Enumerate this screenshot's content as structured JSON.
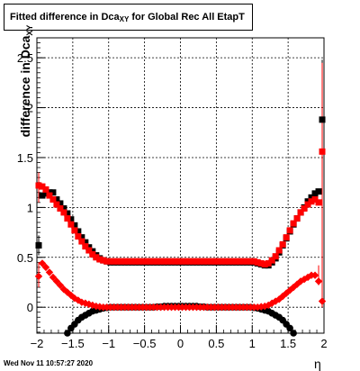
{
  "chart_data": {
    "type": "scatter",
    "title": {
      "prefix": "Fitted difference in Dca",
      "sub": "XY",
      "suffix": " for Global Rec All EtapT"
    },
    "ylabel": {
      "prefix": "difference in Dca",
      "sub": "XY"
    },
    "xlabel": "η",
    "xlim": [
      -2,
      2
    ],
    "ylim": [
      -0.26,
      2.7
    ],
    "x_ticks": [
      -2,
      -1.5,
      -1,
      -0.5,
      0,
      0.5,
      1,
      1.5,
      2
    ],
    "x_tick_labels": [
      "−2",
      "−1.5",
      "−1",
      "−0.5",
      "0",
      "0.5",
      "1",
      "1.5",
      "2"
    ],
    "y_ticks": [
      0,
      0.5,
      1,
      1.5,
      2,
      2.5
    ],
    "y_tick_labels": [
      "0",
      "0.5",
      "1",
      "1.5",
      "2",
      "2.5"
    ],
    "grid": true,
    "footer": "Wed Nov 11 10:57:27 2020",
    "series": [
      {
        "color": "#000000",
        "marker": "square",
        "x": [
          -1.975,
          -1.925,
          -1.875,
          -1.825,
          -1.775,
          -1.725,
          -1.675,
          -1.625,
          -1.575,
          -1.525,
          -1.475,
          -1.425,
          -1.375,
          -1.325,
          -1.275,
          -1.225,
          -1.175,
          -1.125,
          -1.075,
          -1.025,
          -0.975,
          -0.925,
          -0.875,
          -0.825,
          -0.775,
          -0.725,
          -0.675,
          -0.625,
          -0.575,
          -0.525,
          -0.475,
          -0.425,
          -0.375,
          -0.325,
          -0.275,
          -0.225,
          -0.175,
          -0.125,
          -0.075,
          -0.025,
          0.025,
          0.075,
          0.125,
          0.175,
          0.225,
          0.275,
          0.325,
          0.375,
          0.425,
          0.475,
          0.525,
          0.575,
          0.625,
          0.675,
          0.725,
          0.775,
          0.825,
          0.875,
          0.925,
          0.975,
          1.025,
          1.075,
          1.125,
          1.175,
          1.225,
          1.275,
          1.325,
          1.375,
          1.425,
          1.475,
          1.525,
          1.575,
          1.625,
          1.675,
          1.725,
          1.775,
          1.825,
          1.875,
          1.925,
          1.975
        ],
        "y": [
          0.62,
          1.12,
          1.14,
          1.15,
          1.15,
          1.08,
          1.04,
          0.99,
          0.94,
          0.88,
          0.82,
          0.76,
          0.7,
          0.65,
          0.6,
          0.56,
          0.52,
          0.49,
          0.47,
          0.46,
          0.45,
          0.45,
          0.45,
          0.45,
          0.45,
          0.45,
          0.45,
          0.45,
          0.45,
          0.45,
          0.45,
          0.45,
          0.45,
          0.45,
          0.45,
          0.45,
          0.45,
          0.45,
          0.45,
          0.45,
          0.45,
          0.45,
          0.45,
          0.45,
          0.45,
          0.45,
          0.45,
          0.45,
          0.45,
          0.45,
          0.45,
          0.45,
          0.45,
          0.45,
          0.45,
          0.45,
          0.45,
          0.45,
          0.45,
          0.45,
          0.45,
          0.44,
          0.43,
          0.42,
          0.42,
          0.45,
          0.49,
          0.55,
          0.62,
          0.69,
          0.76,
          0.83,
          0.89,
          0.95,
          1.0,
          1.06,
          1.1,
          1.14,
          1.16,
          1.88
        ]
      },
      {
        "color": "#ff0000",
        "marker": "square",
        "x": [
          -1.975,
          -1.925,
          -1.875,
          -1.825,
          -1.775,
          -1.725,
          -1.675,
          -1.625,
          -1.575,
          -1.525,
          -1.475,
          -1.425,
          -1.375,
          -1.325,
          -1.275,
          -1.225,
          -1.175,
          -1.125,
          -1.075,
          -1.025,
          -0.975,
          -0.925,
          -0.875,
          -0.825,
          -0.775,
          -0.725,
          -0.675,
          -0.625,
          -0.575,
          -0.525,
          -0.475,
          -0.425,
          -0.375,
          -0.325,
          -0.275,
          -0.225,
          -0.175,
          -0.125,
          -0.075,
          -0.025,
          0.025,
          0.075,
          0.125,
          0.175,
          0.225,
          0.275,
          0.325,
          0.375,
          0.425,
          0.475,
          0.525,
          0.575,
          0.625,
          0.675,
          0.725,
          0.775,
          0.825,
          0.875,
          0.925,
          0.975,
          1.025,
          1.075,
          1.125,
          1.175,
          1.225,
          1.275,
          1.325,
          1.375,
          1.425,
          1.475,
          1.525,
          1.575,
          1.625,
          1.675,
          1.725,
          1.775,
          1.825,
          1.875,
          1.925,
          1.975
        ],
        "y": [
          1.22,
          1.21,
          1.18,
          1.12,
          1.08,
          1.03,
          0.99,
          0.95,
          0.89,
          0.83,
          0.77,
          0.71,
          0.66,
          0.61,
          0.57,
          0.53,
          0.5,
          0.48,
          0.47,
          0.46,
          0.46,
          0.46,
          0.46,
          0.46,
          0.46,
          0.46,
          0.46,
          0.46,
          0.46,
          0.46,
          0.46,
          0.46,
          0.46,
          0.46,
          0.46,
          0.46,
          0.46,
          0.46,
          0.46,
          0.46,
          0.46,
          0.46,
          0.46,
          0.46,
          0.46,
          0.46,
          0.46,
          0.46,
          0.46,
          0.46,
          0.46,
          0.46,
          0.46,
          0.46,
          0.46,
          0.46,
          0.46,
          0.46,
          0.46,
          0.46,
          0.46,
          0.45,
          0.44,
          0.43,
          0.44,
          0.47,
          0.51,
          0.57,
          0.63,
          0.7,
          0.77,
          0.84,
          0.89,
          0.95,
          0.99,
          1.03,
          1.06,
          1.08,
          1.05,
          1.56
        ]
      },
      {
        "color": "#000000",
        "marker": "circle",
        "x": [
          -1.575,
          -1.525,
          -1.475,
          -1.425,
          -1.375,
          -1.325,
          -1.275,
          -1.225,
          -1.175,
          -1.125,
          -1.075,
          -1.025,
          -0.975,
          -0.925,
          -0.875,
          -0.825,
          -0.775,
          -0.725,
          -0.675,
          -0.625,
          -0.575,
          -0.525,
          -0.475,
          -0.425,
          -0.375,
          -0.325,
          -0.275,
          -0.225,
          -0.175,
          -0.125,
          -0.075,
          -0.025,
          0.025,
          0.075,
          0.125,
          0.175,
          0.225,
          0.275,
          0.325,
          0.375,
          0.425,
          0.475,
          0.525,
          0.575,
          0.625,
          0.675,
          0.725,
          0.775,
          0.825,
          0.875,
          0.925,
          0.975,
          1.025,
          1.075,
          1.125,
          1.175,
          1.225,
          1.275,
          1.325,
          1.375,
          1.425,
          1.475,
          1.525,
          1.575
        ],
        "y": [
          -0.26,
          -0.21,
          -0.17,
          -0.13,
          -0.1,
          -0.08,
          -0.06,
          -0.04,
          -0.03,
          -0.02,
          -0.01,
          -0.005,
          0,
          0,
          0,
          0,
          0,
          0,
          0,
          0,
          0,
          0,
          0,
          0,
          0,
          0.005,
          0.005,
          0.01,
          0.01,
          0.01,
          0.01,
          0.01,
          0.01,
          0.01,
          0.01,
          0.01,
          0.01,
          0.005,
          0.005,
          0,
          0,
          0,
          0,
          0,
          0,
          0,
          0,
          0,
          0,
          0,
          0,
          0,
          -0.005,
          -0.01,
          -0.02,
          -0.03,
          -0.04,
          -0.06,
          -0.08,
          -0.1,
          -0.13,
          -0.17,
          -0.21,
          -0.26
        ]
      },
      {
        "color": "#ff0000",
        "marker": "diamond",
        "x": [
          -1.975,
          -1.925,
          -1.875,
          -1.825,
          -1.775,
          -1.725,
          -1.675,
          -1.625,
          -1.575,
          -1.525,
          -1.475,
          -1.425,
          -1.375,
          -1.325,
          -1.275,
          -1.225,
          -1.175,
          -1.125,
          -1.075,
          -1.025,
          -0.975,
          -0.925,
          -0.875,
          -0.825,
          -0.775,
          -0.725,
          -0.675,
          -0.625,
          -0.575,
          -0.525,
          -0.475,
          -0.425,
          -0.375,
          -0.325,
          -0.275,
          -0.225,
          -0.175,
          -0.125,
          -0.075,
          -0.025,
          0.025,
          0.075,
          0.125,
          0.175,
          0.225,
          0.275,
          0.325,
          0.375,
          0.425,
          0.475,
          0.525,
          0.575,
          0.625,
          0.675,
          0.725,
          0.775,
          0.825,
          0.875,
          0.925,
          0.975,
          1.025,
          1.075,
          1.125,
          1.175,
          1.225,
          1.275,
          1.325,
          1.375,
          1.425,
          1.475,
          1.525,
          1.575,
          1.625,
          1.675,
          1.725,
          1.775,
          1.825,
          1.875,
          1.925,
          1.975
        ],
        "y": [
          0.31,
          0.44,
          0.4,
          0.35,
          0.3,
          0.26,
          0.22,
          0.18,
          0.15,
          0.12,
          0.09,
          0.07,
          0.05,
          0.04,
          0.03,
          0.02,
          0.01,
          0.005,
          0,
          0,
          0,
          0,
          0,
          0,
          0,
          0,
          0,
          0,
          0,
          0,
          0,
          0,
          0,
          0,
          0,
          0,
          0,
          0,
          0,
          0,
          0,
          0,
          0,
          0,
          0,
          0,
          0,
          0,
          0,
          0,
          0,
          0,
          0,
          0,
          0,
          0,
          0,
          0,
          0,
          0,
          0,
          0,
          0.005,
          0.01,
          0.02,
          0.04,
          0.06,
          0.08,
          0.11,
          0.14,
          0.17,
          0.2,
          0.23,
          0.26,
          0.28,
          0.3,
          0.32,
          0.32,
          0.26,
          0.06
        ]
      }
    ],
    "error_bars": [
      {
        "color": "#000000",
        "x": 1.975,
        "low": 1.3,
        "high": 2.48
      },
      {
        "color": "#ff0000",
        "x": 1.975,
        "low": 0.0,
        "high": 2.45
      },
      {
        "color": "#ff0000",
        "x": 1.925,
        "low": 0.22,
        "high": 0.42
      },
      {
        "color": "#ff0000",
        "x": -1.975,
        "low": 1.05,
        "high": 1.35
      },
      {
        "color": "#ff0000",
        "x": -1.975,
        "low": 0.2,
        "high": 0.45
      },
      {
        "color": "#000000",
        "x": -1.975,
        "low": 0.52,
        "high": 0.72
      }
    ]
  }
}
